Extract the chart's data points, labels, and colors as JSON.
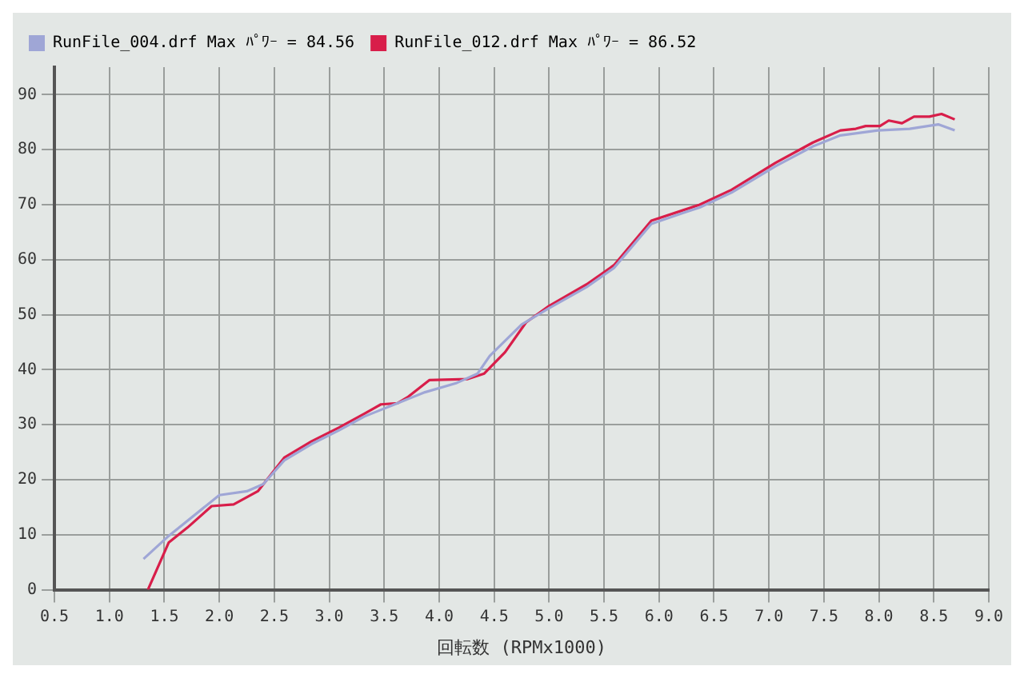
{
  "chart_data": {
    "type": "line",
    "xlabel": "回転数 (RPMx1000)",
    "xlim": [
      0.5,
      9.0
    ],
    "xticks": [
      0.5,
      {
        "value": 1,
        "label": "1.0"
      },
      1.5,
      {
        "value": 2,
        "label": "2.0"
      },
      2.5,
      {
        "value": 3,
        "label": "3.0"
      },
      3.5,
      {
        "value": 4,
        "label": "4.0"
      },
      4.5,
      {
        "value": 5,
        "label": "5.0"
      },
      5.5,
      {
        "value": 6,
        "label": "6.0"
      },
      6.5,
      {
        "value": 7,
        "label": "7.0"
      },
      7.5,
      {
        "value": 8,
        "label": "8.0"
      },
      8.5,
      {
        "value": 9,
        "label": "9.0"
      }
    ],
    "ylim": [
      0,
      95
    ],
    "yticks": [
      0,
      10,
      20,
      30,
      40,
      50,
      60,
      70,
      80,
      90
    ],
    "grid": true,
    "legend": "top left",
    "marker": "none",
    "line_style": "solid",
    "series": [
      {
        "name": "RunFile_004.drf Max ﾊﾟﾜｰ = 84.56",
        "color": "#9fa6d6",
        "x": [
          1.31,
          1.54,
          2.0,
          2.25,
          2.4,
          2.59,
          2.84,
          3.09,
          3.32,
          3.47,
          3.87,
          4.16,
          4.35,
          4.46,
          4.75,
          5.0,
          5.34,
          5.59,
          5.93,
          6.22,
          6.37,
          6.66,
          7.06,
          7.4,
          7.65,
          7.99,
          8.28,
          8.54,
          8.69
        ],
        "values": [
          5.6,
          9.8,
          17.2,
          17.9,
          19.2,
          23.5,
          26.5,
          29,
          31.5,
          32.7,
          35.9,
          37.6,
          39.3,
          42.5,
          48.2,
          51.2,
          55,
          58.5,
          66.5,
          68.5,
          69.5,
          72.2,
          77,
          80.6,
          82.6,
          83.5,
          83.8,
          84.6,
          83.5
        ]
      },
      {
        "name": "RunFile_012.drf Max ﾊﾟﾜｰ = 86.52",
        "color": "#d81e4a",
        "x": [
          1.35,
          1.54,
          1.71,
          1.93,
          2.13,
          2.35,
          2.59,
          2.84,
          3.09,
          3.32,
          3.47,
          3.62,
          3.72,
          3.91,
          4.26,
          4.41,
          4.6,
          4.79,
          5.0,
          5.34,
          5.59,
          5.93,
          6.22,
          6.37,
          6.66,
          7.06,
          7.4,
          7.65,
          7.79,
          7.88,
          8.01,
          8.09,
          8.21,
          8.32,
          8.46,
          8.57,
          8.69
        ],
        "values": [
          0,
          8.6,
          11.3,
          15.2,
          15.5,
          17.9,
          24,
          27,
          29.5,
          32,
          33.7,
          33.9,
          35.1,
          38.1,
          38.3,
          39.3,
          43.2,
          48.6,
          51.6,
          55.5,
          59,
          67.1,
          69,
          70,
          72.7,
          77.6,
          81.3,
          83.5,
          83.8,
          84.3,
          84.3,
          85.3,
          84.8,
          86,
          86,
          86.5,
          85.5
        ]
      }
    ]
  }
}
